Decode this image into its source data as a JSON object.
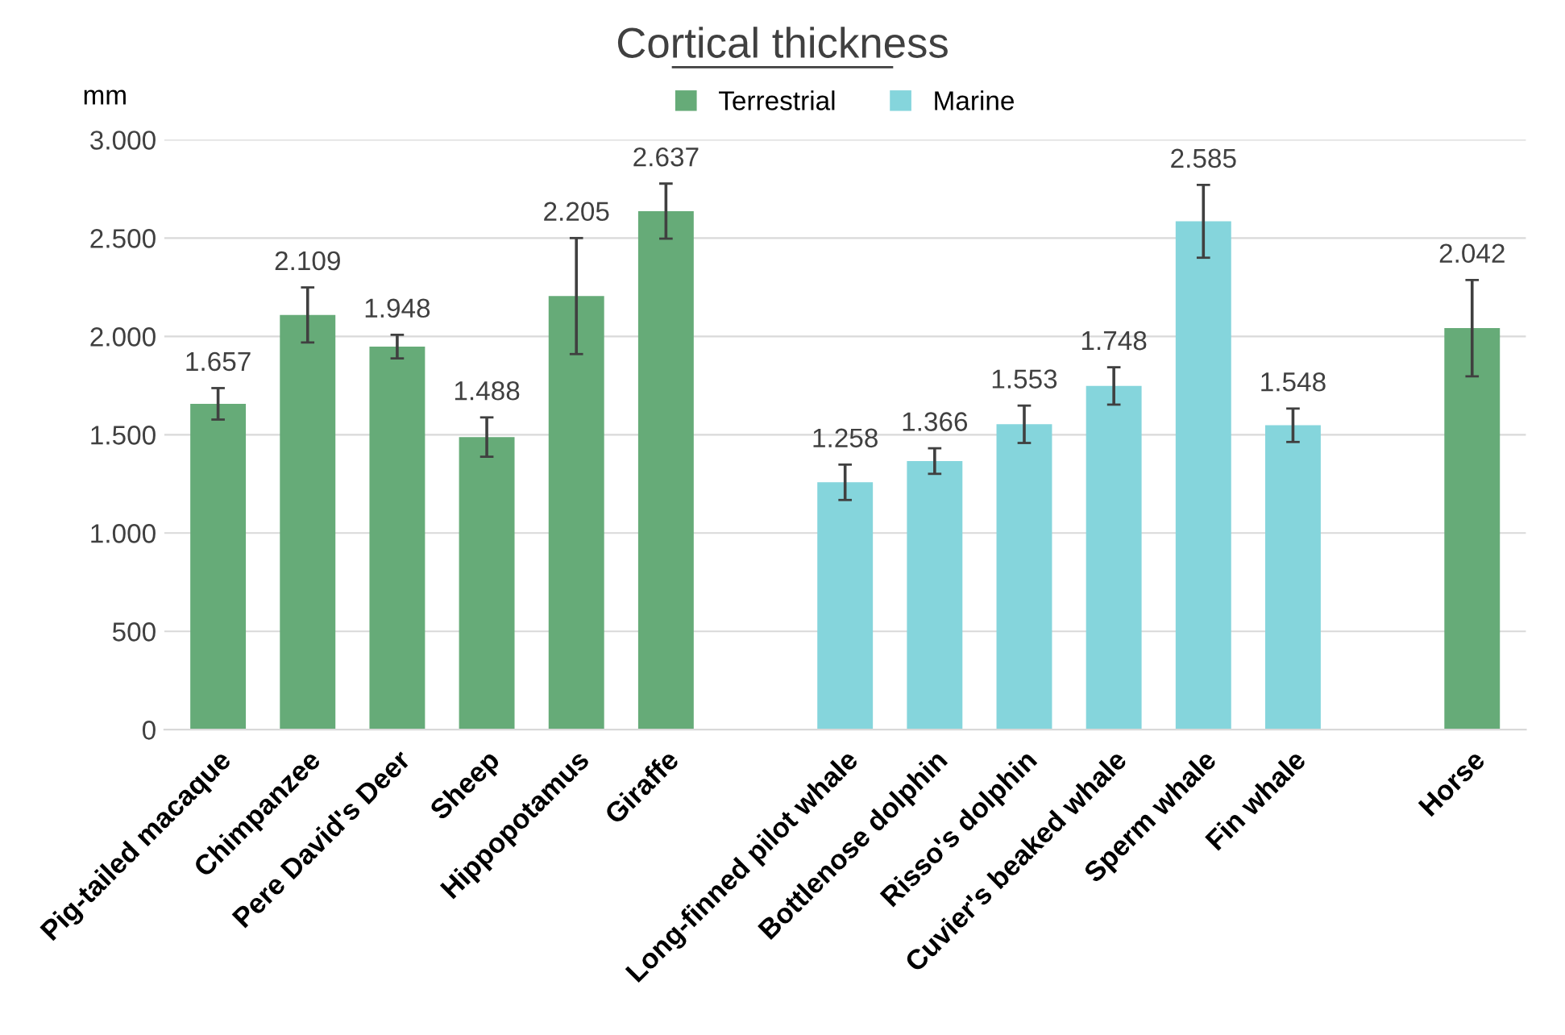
{
  "chart_data": {
    "type": "bar",
    "title": "Cortical thickness",
    "ylabel": "mm",
    "categories": [
      "Pig-tailed macaque",
      "Chimpanzee",
      "Pere David's Deer",
      "Sheep",
      "Hippopotamus",
      "Giraffe",
      null,
      "Long-finned pilot whale",
      "Bottlenose dolphin",
      "Risso's dolphin",
      "Cuvier's beaked whale",
      "Sperm whale",
      "Fin whale",
      null,
      "Horse"
    ],
    "series": [
      {
        "name": "Terrestrial",
        "color": "#66ab78",
        "values": [
          1657,
          2109,
          1948,
          1488,
          2205,
          2637,
          null,
          null,
          null,
          null,
          null,
          null,
          null,
          null,
          2042
        ],
        "errors": [
          80,
          140,
          60,
          100,
          295,
          140,
          null,
          null,
          null,
          null,
          null,
          null,
          null,
          null,
          245
        ],
        "value_labels": [
          "1.657",
          "2.109",
          "1.948",
          "1.488",
          "2.205",
          "2.637",
          null,
          null,
          null,
          null,
          null,
          null,
          null,
          null,
          "2.042"
        ]
      },
      {
        "name": "Marine",
        "color": "#85d5dc",
        "values": [
          null,
          null,
          null,
          null,
          null,
          null,
          null,
          1258,
          1366,
          1553,
          1748,
          2585,
          1548,
          null,
          null
        ],
        "errors": [
          null,
          null,
          null,
          null,
          null,
          null,
          null,
          90,
          65,
          95,
          95,
          185,
          85,
          null,
          null
        ],
        "value_labels": [
          null,
          null,
          null,
          null,
          null,
          null,
          null,
          "1.258",
          "1.366",
          "1.553",
          "1.748",
          "2.585",
          "1.548",
          null,
          null
        ]
      }
    ],
    "ylim": [
      0,
      3000
    ],
    "yticks": [
      0,
      500,
      {
        "value": 1000,
        "label": "1.000"
      },
      {
        "value": 1500,
        "label": "1.500"
      },
      {
        "value": 2000,
        "label": "2.000"
      },
      {
        "value": 2500,
        "label": "2.500"
      },
      {
        "value": 3000,
        "label": "3.000"
      }
    ],
    "grid": "y",
    "legend": "top"
  }
}
